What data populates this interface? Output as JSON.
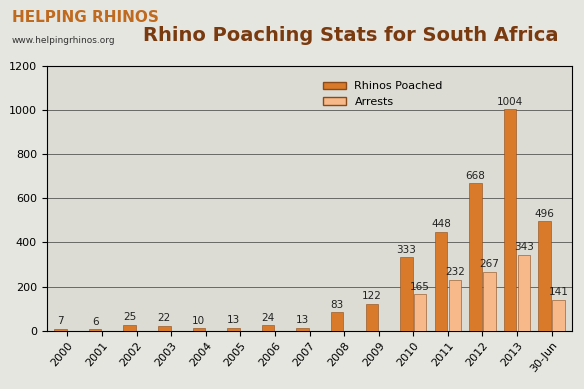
{
  "chart_data": {
    "type": "bar",
    "title": "Rhino Poaching Stats for South Africa",
    "annotations": [
      "HELPING RHINOS",
      "www.helpingrhinos.org"
    ],
    "categories": [
      "2000",
      "2001",
      "2002",
      "2003",
      "2004",
      "2005",
      "2006",
      "2007",
      "2008",
      "2009",
      "2010",
      "2011",
      "2012",
      "2013",
      "30-Jun"
    ],
    "series": [
      {
        "name": "Rhinos Poached",
        "color": "#d97a2b",
        "values": [
          7,
          6,
          25,
          22,
          10,
          13,
          24,
          13,
          83,
          122,
          333,
          448,
          668,
          1004,
          496
        ]
      },
      {
        "name": "Arrests",
        "color": "#f8b98a",
        "values": [
          null,
          null,
          null,
          null,
          null,
          null,
          null,
          null,
          null,
          null,
          165,
          232,
          267,
          343,
          141
        ]
      }
    ],
    "ylim": [
      0,
      1200
    ],
    "yticks": [
      0,
      200,
      400,
      600,
      800,
      1000,
      1200
    ],
    "grid": true,
    "legend": "upper center",
    "data_labels": true
  }
}
